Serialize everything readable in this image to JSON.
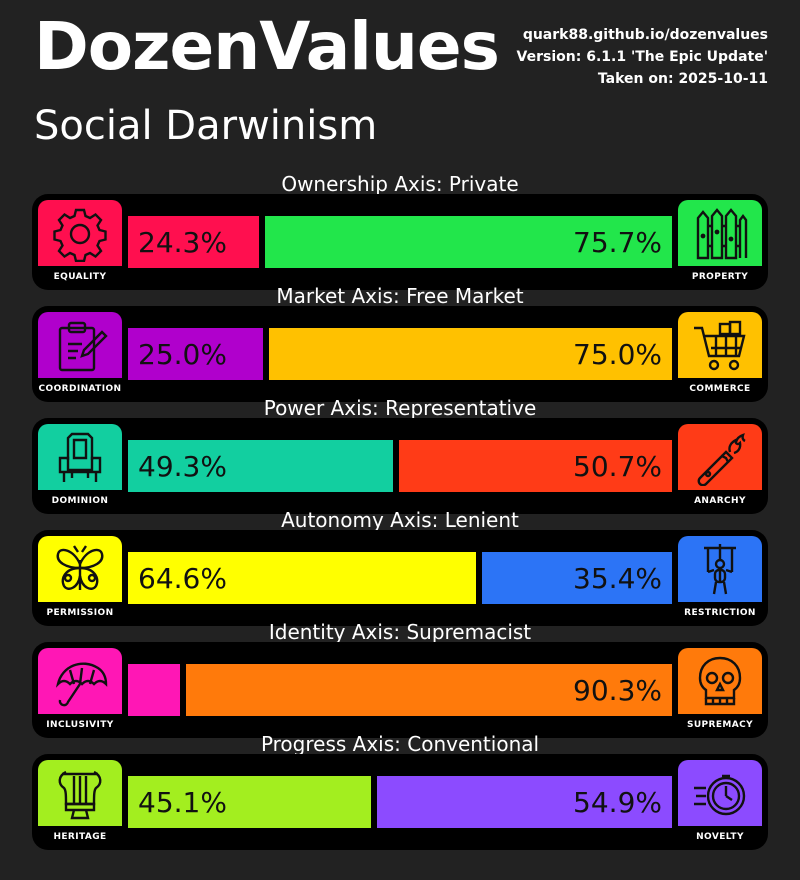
{
  "title": "DozenValues",
  "subtitle": "Social Darwinism",
  "meta": {
    "url": "quark88.github.io/dozenvalues",
    "version": "Version: 6.1.1 'The Epic Update'",
    "date": "Taken on: 2025-10-11"
  },
  "axes": [
    {
      "title": "Ownership Axis: Private",
      "left": {
        "label": "EQUALITY",
        "icon": "gear-icon",
        "color": "#ff0f4f",
        "value": 24.3,
        "text": "24.3%"
      },
      "right": {
        "label": "PROPERTY",
        "icon": "fence-icon",
        "color": "#22e64b",
        "value": 75.7,
        "text": "75.7%"
      }
    },
    {
      "title": "Market Axis: Free Market",
      "left": {
        "label": "COORDINATION",
        "icon": "clipboard-pencil-icon",
        "color": "#b000cc",
        "value": 25.0,
        "text": "25.0%"
      },
      "right": {
        "label": "COMMERCE",
        "icon": "shopping-cart-icon",
        "color": "#ffc100",
        "value": 75.0,
        "text": "75.0%"
      }
    },
    {
      "title": "Power Axis: Representative",
      "left": {
        "label": "DOMINION",
        "icon": "throne-icon",
        "color": "#12cfa0",
        "value": 49.3,
        "text": "49.3%"
      },
      "right": {
        "label": "ANARCHY",
        "icon": "molotov-icon",
        "color": "#ff3b17",
        "value": 50.7,
        "text": "50.7%"
      }
    },
    {
      "title": "Autonomy Axis: Lenient",
      "left": {
        "label": "PERMISSION",
        "icon": "butterfly-icon",
        "color": "#ffff00",
        "value": 64.6,
        "text": "64.6%"
      },
      "right": {
        "label": "RESTRICTION",
        "icon": "marionette-icon",
        "color": "#2c74f6",
        "value": 35.4,
        "text": "35.4%"
      }
    },
    {
      "title": "Identity Axis: Supremacist",
      "left": {
        "label": "INCLUSIVITY",
        "icon": "umbrella-icon",
        "color": "#ff17b5",
        "value": 9.7,
        "text": ""
      },
      "right": {
        "label": "SUPREMACY",
        "icon": "skull-icon",
        "color": "#ff7a0b",
        "value": 90.3,
        "text": "90.3%"
      }
    },
    {
      "title": "Progress Axis: Conventional",
      "left": {
        "label": "HERITAGE",
        "icon": "lyre-icon",
        "color": "#a3ee1f",
        "value": 45.1,
        "text": "45.1%"
      },
      "right": {
        "label": "NOVELTY",
        "icon": "stopwatch-icon",
        "color": "#8c4bff",
        "value": 54.9,
        "text": "54.9%"
      }
    }
  ]
}
